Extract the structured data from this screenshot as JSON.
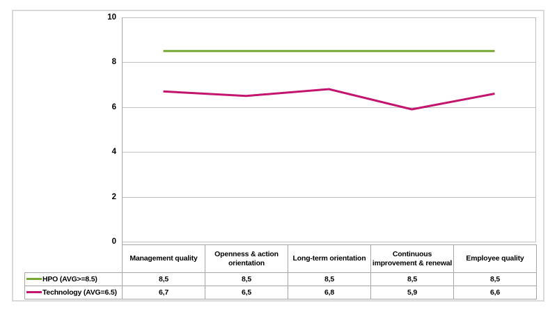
{
  "chart_data": {
    "type": "line",
    "title": "",
    "xlabel": "",
    "ylabel": "",
    "categories": [
      "Management quality",
      "Openness & action orientation",
      "Long-term orientation",
      "Continuous improvement & renewal",
      "Employee quality"
    ],
    "series": [
      {
        "name": "HPO (AVG>=8.5)",
        "values": [
          8.5,
          8.5,
          8.5,
          8.5,
          8.5
        ],
        "display_values": [
          "8,5",
          "8,5",
          "8,5",
          "8,5",
          "8,5"
        ],
        "color": "#76a833"
      },
      {
        "name": "Technology (AVG=6.5)",
        "values": [
          6.7,
          6.5,
          6.8,
          5.9,
          6.6
        ],
        "display_values": [
          "6,7",
          "6,5",
          "6,8",
          "5,9",
          "6,6"
        ],
        "color": "#c4156e"
      }
    ],
    "ylim": [
      0,
      10
    ],
    "yticks": [
      10,
      8,
      6,
      4,
      2,
      0
    ],
    "grid": true,
    "legend_position": "table-left"
  },
  "colors": {
    "hpo_line": "#76a833",
    "technology_line": "#c4156e",
    "gridline": "#c0c0c0",
    "axis": "#a6a6a6",
    "table_border": "#a6a6a6",
    "frame_border": "#d9d9d9",
    "text": "#000000",
    "background": "#ffffff"
  }
}
